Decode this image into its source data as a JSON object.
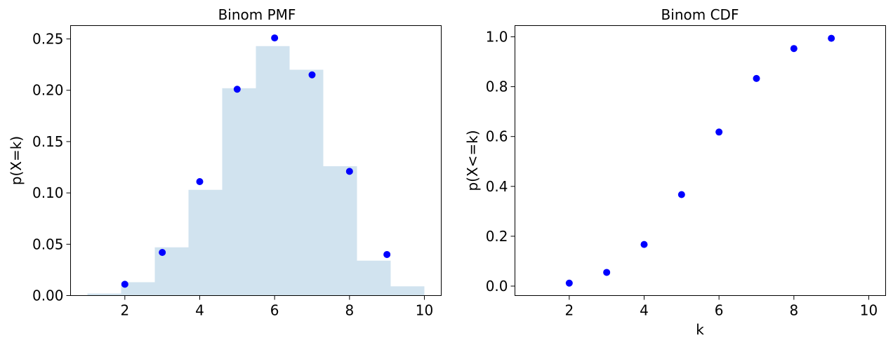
{
  "chart_data": [
    {
      "type": "bar",
      "title": "Binom PMF",
      "xlabel": "",
      "ylabel": "p(X=k)",
      "xlim": [
        0.55,
        10.45
      ],
      "ylim": [
        0.0,
        0.263
      ],
      "xticks": [
        2,
        4,
        6,
        8,
        10
      ],
      "xtick_labels": [
        "2",
        "4",
        "6",
        "8",
        "10"
      ],
      "yticks": [
        0.0,
        0.05,
        0.1,
        0.15,
        0.2,
        0.25
      ],
      "ytick_labels": [
        "0.00",
        "0.05",
        "0.10",
        "0.15",
        "0.20",
        "0.25"
      ],
      "grid": false,
      "histogram": {
        "color": "#d1e3ef",
        "bin_edges": [
          1.0,
          1.9,
          2.8,
          3.7,
          4.6,
          5.5,
          6.4,
          7.3,
          8.2,
          9.1,
          10.0
        ],
        "heights": [
          0.002,
          0.013,
          0.047,
          0.103,
          0.202,
          0.243,
          0.22,
          0.126,
          0.034,
          0.009
        ]
      },
      "points": {
        "color": "#0000ff",
        "x": [
          2,
          3,
          4,
          5,
          6,
          7,
          8,
          9
        ],
        "y": [
          0.011,
          0.042,
          0.111,
          0.201,
          0.251,
          0.215,
          0.121,
          0.04
        ]
      }
    },
    {
      "type": "scatter",
      "title": "Binom CDF",
      "xlabel": "k",
      "ylabel": "p(X<=k)",
      "xlim": [
        0.55,
        10.45
      ],
      "ylim": [
        -0.038,
        1.045
      ],
      "xticks": [
        2,
        4,
        6,
        8,
        10
      ],
      "xtick_labels": [
        "2",
        "4",
        "6",
        "8",
        "10"
      ],
      "yticks": [
        0.0,
        0.2,
        0.4,
        0.6,
        0.8,
        1.0
      ],
      "ytick_labels": [
        "0.0",
        "0.2",
        "0.4",
        "0.6",
        "0.8",
        "1.0"
      ],
      "grid": false,
      "points": {
        "color": "#0000ff",
        "x": [
          2,
          3,
          4,
          5,
          6,
          7,
          8,
          9
        ],
        "y": [
          0.012,
          0.055,
          0.167,
          0.367,
          0.618,
          0.833,
          0.953,
          0.994
        ]
      }
    }
  ]
}
